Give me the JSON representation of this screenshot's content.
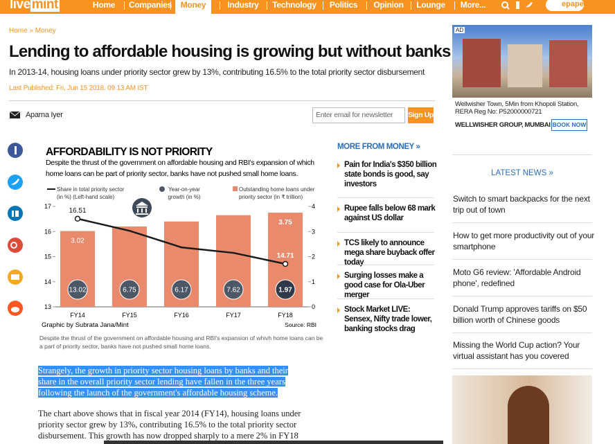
{
  "nav": {
    "logo": [
      "live",
      "mint"
    ],
    "items": [
      "Home",
      "Companies",
      "Money",
      "Industry",
      "Technology",
      "Politics",
      "Opinion",
      "Lounge",
      "More..."
    ],
    "active": "Money",
    "epaper": "epaper"
  },
  "breadcrumb": "Home » Money",
  "headline": "Lending to affordable housing is growing but without banks",
  "summary": "In 2013-14, housing loans under priority sector grew by 13%, contributing 16.5% to the total priority sector disbursement",
  "published": "Last Published: Fri, Jun 15 2018. 09 13 AM IST",
  "author": "Aparna Iyer",
  "newsletter": {
    "placeholder": "Enter email for newsletter",
    "button": "Sign Up"
  },
  "chart_data": {
    "type": "bar",
    "title": "AFFORDABILITY IS NOT PRIORITY",
    "subtitle": [
      "Despite the thrust of the government on affordable housing and RBI's expansion of which",
      "home loans can be part of priority sector, banks have not pushed small home loans."
    ],
    "categories": [
      "FY14",
      "FY15",
      "FY16",
      "FY17",
      "FY18"
    ],
    "series": [
      {
        "name": [
          "Share in total priority sector",
          "(in %)  (Left-hand scale)"
        ],
        "type": "line",
        "color": "#1a1a1a",
        "values": [
          16.51,
          16.03,
          15.37,
          15.15,
          14.71
        ],
        "value_labels": [
          "16.51",
          null,
          null,
          null,
          "14.71"
        ]
      },
      {
        "name": [
          "Year-on-year",
          "growth (in %)"
        ],
        "type": "badge",
        "color": "#4d5866",
        "values": [
          13.02,
          6.75,
          6.17,
          7.62,
          1.97
        ],
        "value_labels": [
          "13.02",
          "6.75",
          "6.17",
          "7.62",
          "1.97"
        ]
      },
      {
        "name": [
          "Outstanding home loans under",
          "priority sector        (in ₹ trillion)"
        ],
        "type": "bar",
        "axis": "y2",
        "color": "#ea8a6c",
        "values": [
          3.02,
          3.2,
          3.4,
          3.65,
          3.75
        ],
        "value_labels": [
          "3.02",
          null,
          null,
          null,
          "3.75"
        ]
      }
    ],
    "ylim": [
      13,
      17
    ],
    "yticks": [
      13,
      14,
      15,
      16,
      17
    ],
    "y2lim": [
      0,
      4
    ],
    "y2ticks": [
      0,
      1,
      2,
      3,
      4
    ],
    "credit": "Graphic by Subrata Jana/Mint",
    "source": "Source: RBI",
    "caption": [
      "Despite the thrust of the government on affordable housing and RBI's expansion of whivh home loans can be",
      "a part of priority sector, banks have not pushed small home loans."
    ]
  },
  "article": {
    "highlight": [
      "Strangely, the growth in priority sector housing loans by banks and their",
      "share in the overall priority sector lending have fallen in the three years",
      "following the launch of the government's affordable housing scheme."
    ],
    "paragraph": [
      "The chart above shows that in fiscal year 2014 (FY14), housing loans under",
      "priority sector grew by 13%, contributing 16.5% to the total priority sector",
      "disbursement. This growth has now dropped sharply to a mere 2% in FY18"
    ]
  },
  "more_from": {
    "title": "MORE FROM MONEY »",
    "items": [
      "Pain for India's $350 billion state bonds is good, say investors",
      "Rupee falls below 68 mark against US dollar",
      "TCS likely to announce mega share buyback offer today",
      "Surging losses make a good case for Ola-Uber merger",
      "Stock Market LIVE: Sensex, Nifty trade lower, banking stocks drag"
    ]
  },
  "ad": {
    "label": "AD",
    "lines": [
      "Wellwisher Town, 5Min from Khopoli Station,",
      "RERA Reg No: P52000000721"
    ],
    "advertiser": "WELLWISHER GROUP, MUMBAI",
    "button": "BOOK NOW"
  },
  "latest": {
    "title": "LATEST NEWS »",
    "items": [
      "Switch to smart backpacks for the next trip out of town",
      "How to get more productivity out of your smartphone",
      "Moto G6 review: 'Affordable Android phone', redefined",
      "Donald Trump approves tariffs on $50 billion worth of Chinese goods",
      "Missing the World Cup action? Your virtual assistant has you covered"
    ]
  }
}
